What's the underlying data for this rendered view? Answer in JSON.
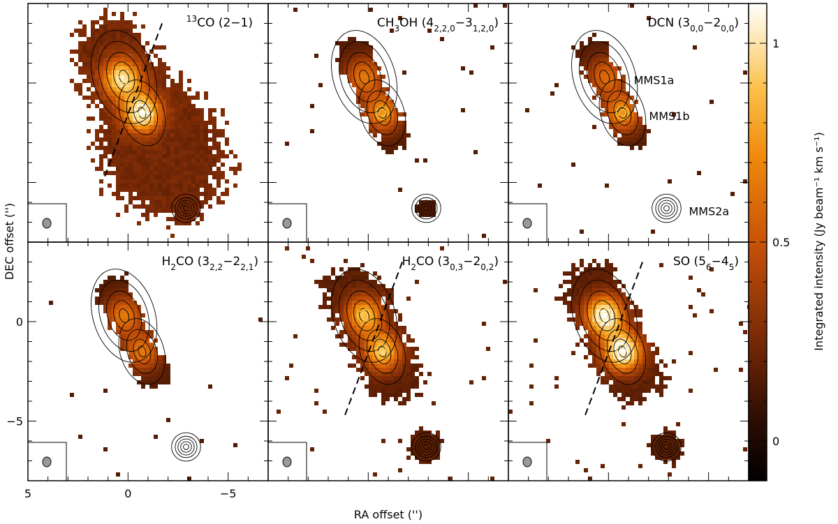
{
  "figure": {
    "xlabel": "RA offset ('')",
    "ylabel": "DEC offset ('')",
    "colorbar_label": "Integrated intensity (Jy beam⁻¹ km s⁻¹)"
  },
  "chart_data": {
    "type": "heatmap",
    "description_units": "arcsec offsets; intensity in Jy beam^-1 km s^-1",
    "xlim": [
      5,
      -7
    ],
    "ylim": [
      -8,
      4
    ],
    "x_ticks": [
      5,
      0,
      -5
    ],
    "y_ticks": [
      0,
      -5
    ],
    "colorbar": {
      "range": [
        -0.1,
        1.1
      ],
      "ticks": [
        0,
        0.5,
        1
      ],
      "tick_labels": [
        "0",
        "0.5",
        "1"
      ]
    },
    "sources": [
      {
        "name": "MMS1a",
        "x": 0.2,
        "y": 0.3
      },
      {
        "name": "MMS1b",
        "x": -0.7,
        "y": -1.5
      },
      {
        "name": "MMS2a",
        "x": -2.9,
        "y": -6.3
      }
    ],
    "panels": [
      {
        "id": "13CO",
        "label_parts": [
          [
            "13",
            "sup"
          ],
          [
            "CO (2−1)",
            ""
          ]
        ],
        "peaks": [
          [
            0.3,
            0.2,
            0.8
          ],
          [
            -0.7,
            -1.5,
            0.9
          ]
        ],
        "extended": "high",
        "dashed_line": true,
        "source_labels": false
      },
      {
        "id": "CH3OH",
        "label_parts": [
          [
            "CH",
            ""
          ],
          [
            "3",
            "sub"
          ],
          [
            "OH (4",
            ""
          ],
          [
            "2,2,0",
            "sub"
          ],
          [
            "−3",
            ""
          ],
          [
            "1,2,0",
            "sub"
          ],
          [
            ")",
            ""
          ]
        ],
        "peaks": [
          [
            0.2,
            0.3,
            0.5
          ],
          [
            -0.7,
            -1.5,
            0.6
          ]
        ],
        "extended": "low",
        "dashed_line": false,
        "source_labels": false
      },
      {
        "id": "DCN",
        "label_parts": [
          [
            "DCN (3",
            ""
          ],
          [
            "0,0",
            "sub"
          ],
          [
            "−2",
            ""
          ],
          [
            "0,0",
            "sub"
          ],
          [
            ")",
            ""
          ]
        ],
        "peaks": [
          [
            0.1,
            0.3,
            0.45
          ],
          [
            -0.7,
            -1.5,
            0.6
          ]
        ],
        "extended": "low",
        "dashed_line": false,
        "source_labels": true
      },
      {
        "id": "H2CO_322",
        "label_parts": [
          [
            "H",
            ""
          ],
          [
            "2",
            "sub"
          ],
          [
            "CO (3",
            ""
          ],
          [
            "2,2",
            "sub"
          ],
          [
            "−2",
            ""
          ],
          [
            "2,1",
            "sub"
          ],
          [
            ")",
            ""
          ]
        ],
        "peaks": [
          [
            0.2,
            0.3,
            0.5
          ],
          [
            -0.7,
            -1.5,
            0.5
          ]
        ],
        "extended": "low",
        "dashed_line": false,
        "source_labels": false
      },
      {
        "id": "H2CO_303",
        "label_parts": [
          [
            "H",
            ""
          ],
          [
            "2",
            "sub"
          ],
          [
            "CO (3",
            ""
          ],
          [
            "0,3",
            "sub"
          ],
          [
            "−2",
            ""
          ],
          [
            "0,2",
            "sub"
          ],
          [
            ")",
            ""
          ]
        ],
        "peaks": [
          [
            0.2,
            0.3,
            0.7
          ],
          [
            -0.7,
            -1.5,
            0.75
          ]
        ],
        "extended": "mid",
        "dashed_line": true,
        "source_labels": false
      },
      {
        "id": "SO",
        "label_parts": [
          [
            "SO (5",
            ""
          ],
          [
            "6",
            "sub"
          ],
          [
            "−4",
            ""
          ],
          [
            "5",
            "sub"
          ],
          [
            ")",
            ""
          ]
        ],
        "peaks": [
          [
            0.2,
            0.3,
            1.0
          ],
          [
            -0.7,
            -1.5,
            1.05
          ]
        ],
        "extended": "mid",
        "dashed_line": true,
        "source_labels": false
      }
    ]
  }
}
